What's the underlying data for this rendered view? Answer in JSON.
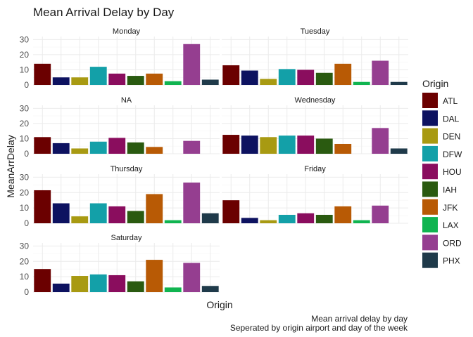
{
  "chart_data": {
    "type": "bar",
    "title": "Mean Arrival Delay by Day",
    "xlabel": "Origin",
    "ylabel": "MeanArrDelay",
    "ylim": [
      0,
      32
    ],
    "yticks": [
      0,
      10,
      20,
      30
    ],
    "grid": true,
    "legend_position": "right",
    "legend_title": "Origin",
    "categories": [
      "ATL",
      "DAL",
      "DEN",
      "DFW",
      "HOU",
      "IAH",
      "JFK",
      "LAX",
      "ORD",
      "PHX"
    ],
    "colors": {
      "ATL": "#6b0000",
      "DAL": "#0d1260",
      "DEN": "#a89a12",
      "DFW": "#13a0a8",
      "HOU": "#8a0d5e",
      "IAH": "#2a5a10",
      "JFK": "#b85a05",
      "LAX": "#10b450",
      "ORD": "#953e90",
      "PHX": "#1f3a4a"
    },
    "facets": [
      {
        "name": "Monday",
        "values": [
          14,
          5,
          5,
          12,
          7.5,
          6,
          7.5,
          2.5,
          27,
          3.5
        ]
      },
      {
        "name": "Tuesday",
        "values": [
          13,
          9.5,
          4,
          10.5,
          10,
          8,
          14,
          2,
          16,
          2
        ]
      },
      {
        "name": "NA",
        "values": [
          11,
          7,
          3.5,
          8,
          10.5,
          7.5,
          4.5,
          null,
          8.5,
          null
        ]
      },
      {
        "name": "Wednesday",
        "values": [
          12.5,
          12,
          11,
          12,
          12,
          10,
          6.5,
          null,
          17,
          3.5
        ]
      },
      {
        "name": "Thursday",
        "values": [
          21.5,
          13,
          4.5,
          13,
          11,
          8,
          19,
          2,
          26.5,
          6.5
        ]
      },
      {
        "name": "Friday",
        "values": [
          15,
          3.5,
          2,
          5.5,
          6.5,
          5.5,
          11,
          2,
          11.5,
          null
        ]
      },
      {
        "name": "Saturday",
        "values": [
          15,
          5.5,
          10.5,
          11.5,
          11,
          7,
          21,
          3,
          19,
          4
        ]
      }
    ],
    "caption": [
      "Mean arrival delay by day",
      "Seperated by origin airport and day of the week"
    ]
  }
}
